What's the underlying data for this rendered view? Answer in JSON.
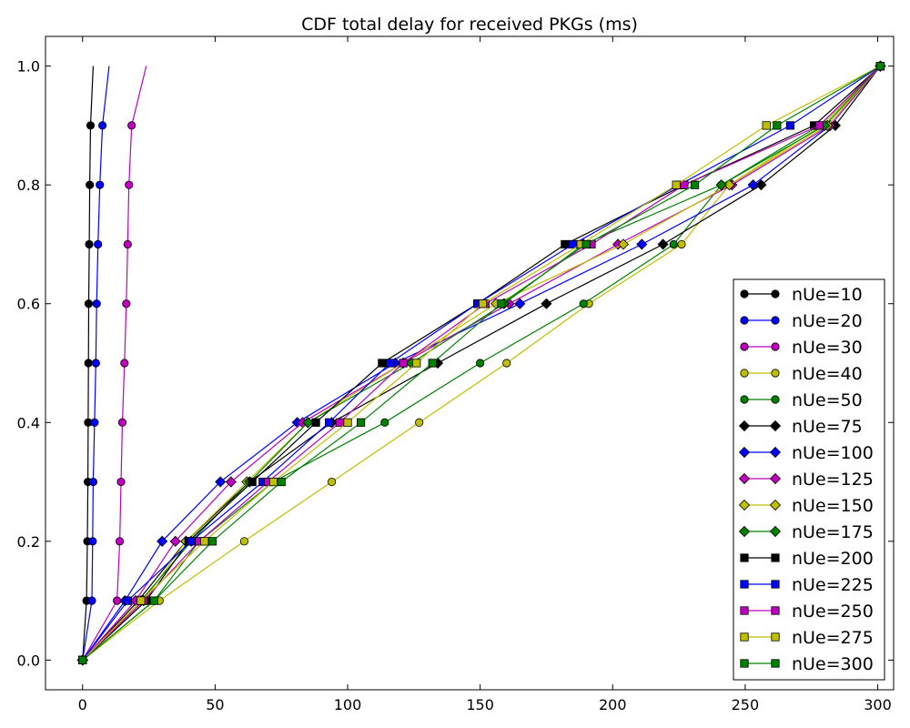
{
  "chart_data": {
    "type": "line",
    "title": "CDF total delay for received PKGs (ms)",
    "xlabel": "",
    "ylabel": "",
    "xlim": [
      -14,
      306
    ],
    "ylim": [
      -0.05,
      1.05
    ],
    "xticks": [
      0,
      50,
      100,
      150,
      200,
      250,
      300
    ],
    "yticks": [
      0.0,
      0.2,
      0.4,
      0.6,
      0.8,
      1.0
    ],
    "xtick_labels": [
      "0",
      "50",
      "100",
      "150",
      "200",
      "250",
      "300"
    ],
    "ytick_labels": [
      "0.0",
      "0.2",
      "0.4",
      "0.6",
      "0.8",
      "1.0"
    ],
    "grid": false,
    "legend_position": "lower-right",
    "series": [
      {
        "name": "nUe=10",
        "color": "#000000",
        "marker": "circle",
        "marker_points": [
          [
            0,
            0
          ],
          [
            1.5,
            0.1
          ],
          [
            1.8,
            0.2
          ],
          [
            2,
            0.3
          ],
          [
            2.1,
            0.4
          ],
          [
            2.2,
            0.5
          ],
          [
            2.3,
            0.6
          ],
          [
            2.5,
            0.7
          ],
          [
            2.7,
            0.8
          ],
          [
            3,
            0.9
          ]
        ],
        "end_point": [
          4,
          1.0
        ]
      },
      {
        "name": "nUe=20",
        "color": "#0000ff",
        "marker": "circle",
        "marker_points": [
          [
            0,
            0
          ],
          [
            3.5,
            0.1
          ],
          [
            3.8,
            0.2
          ],
          [
            4,
            0.3
          ],
          [
            4.5,
            0.4
          ],
          [
            5,
            0.5
          ],
          [
            5.3,
            0.6
          ],
          [
            5.8,
            0.7
          ],
          [
            6.5,
            0.8
          ],
          [
            7.5,
            0.9
          ]
        ],
        "end_point": [
          10,
          1.0
        ]
      },
      {
        "name": "nUe=30",
        "color": "#bf00bf",
        "marker": "circle",
        "marker_points": [
          [
            0,
            0
          ],
          [
            13,
            0.1
          ],
          [
            14,
            0.2
          ],
          [
            14.5,
            0.3
          ],
          [
            15,
            0.4
          ],
          [
            15.8,
            0.5
          ],
          [
            16.5,
            0.6
          ],
          [
            17,
            0.7
          ],
          [
            17.5,
            0.8
          ],
          [
            18.5,
            0.9
          ]
        ],
        "end_point": [
          24,
          1.0
        ]
      },
      {
        "name": "nUe=40",
        "color": "#bfbf00",
        "marker": "circle",
        "marker_points": [
          [
            0,
            0
          ],
          [
            29,
            0.1
          ],
          [
            61,
            0.2
          ],
          [
            94,
            0.3
          ],
          [
            127,
            0.4
          ],
          [
            160,
            0.5
          ],
          [
            191,
            0.6
          ],
          [
            226,
            0.7
          ],
          [
            244,
            0.8
          ],
          [
            279,
            0.9
          ],
          [
            301,
            1.0
          ]
        ]
      },
      {
        "name": "nUe=50",
        "color": "#008000",
        "marker": "circle",
        "marker_points": [
          [
            0,
            0
          ],
          [
            27,
            0.1
          ],
          [
            44,
            0.2
          ],
          [
            72,
            0.3
          ],
          [
            114,
            0.4
          ],
          [
            150,
            0.5
          ],
          [
            189,
            0.6
          ],
          [
            223,
            0.7
          ],
          [
            241,
            0.8
          ],
          [
            278,
            0.9
          ],
          [
            301,
            1.0
          ]
        ]
      },
      {
        "name": "nUe=75",
        "color": "#000000",
        "marker": "diamond",
        "marker_points": [
          [
            0,
            0
          ],
          [
            21,
            0.1
          ],
          [
            39,
            0.2
          ],
          [
            63,
            0.3
          ],
          [
            94,
            0.4
          ],
          [
            134,
            0.5
          ],
          [
            175,
            0.6
          ],
          [
            219,
            0.7
          ],
          [
            256,
            0.8
          ],
          [
            284,
            0.9
          ],
          [
            301,
            1.0
          ]
        ]
      },
      {
        "name": "nUe=100",
        "color": "#0000ff",
        "marker": "diamond",
        "marker_points": [
          [
            0,
            0
          ],
          [
            16,
            0.1
          ],
          [
            30,
            0.2
          ],
          [
            52,
            0.3
          ],
          [
            81,
            0.4
          ],
          [
            118,
            0.5
          ],
          [
            165,
            0.6
          ],
          [
            211,
            0.7
          ],
          [
            253,
            0.8
          ],
          [
            282,
            0.9
          ],
          [
            301,
            1.0
          ]
        ]
      },
      {
        "name": "nUe=125",
        "color": "#bf00bf",
        "marker": "diamond",
        "marker_points": [
          [
            0,
            0
          ],
          [
            20,
            0.1
          ],
          [
            35,
            0.2
          ],
          [
            56,
            0.3
          ],
          [
            83,
            0.4
          ],
          [
            121,
            0.5
          ],
          [
            161,
            0.6
          ],
          [
            202,
            0.7
          ],
          [
            245,
            0.8
          ],
          [
            282,
            0.9
          ],
          [
            301,
            1.0
          ]
        ]
      },
      {
        "name": "nUe=150",
        "color": "#bfbf00",
        "marker": "diamond",
        "marker_points": [
          [
            0,
            0
          ],
          [
            23,
            0.1
          ],
          [
            39,
            0.2
          ],
          [
            62,
            0.3
          ],
          [
            85,
            0.4
          ],
          [
            121,
            0.5
          ],
          [
            156,
            0.6
          ],
          [
            204,
            0.7
          ],
          [
            244,
            0.8
          ],
          [
            281,
            0.9
          ],
          [
            301,
            1.0
          ]
        ]
      },
      {
        "name": "nUe=175",
        "color": "#008000",
        "marker": "diamond",
        "marker_points": [
          [
            0,
            0
          ],
          [
            22,
            0.1
          ],
          [
            41,
            0.2
          ],
          [
            63,
            0.3
          ],
          [
            85,
            0.4
          ],
          [
            124,
            0.5
          ],
          [
            159,
            0.6
          ],
          [
            189,
            0.7
          ],
          [
            241,
            0.8
          ],
          [
            280,
            0.9
          ],
          [
            301,
            1.0
          ]
        ]
      },
      {
        "name": "nUe=200",
        "color": "#000000",
        "marker": "square",
        "marker_points": [
          [
            0,
            0
          ],
          [
            24,
            0.1
          ],
          [
            40,
            0.2
          ],
          [
            64,
            0.3
          ],
          [
            88,
            0.4
          ],
          [
            113,
            0.5
          ],
          [
            149,
            0.6
          ],
          [
            182,
            0.7
          ],
          [
            227,
            0.8
          ],
          [
            276,
            0.9
          ],
          [
            301,
            1.0
          ]
        ]
      },
      {
        "name": "nUe=225",
        "color": "#0000ff",
        "marker": "square",
        "marker_points": [
          [
            0,
            0
          ],
          [
            17,
            0.1
          ],
          [
            41,
            0.2
          ],
          [
            68,
            0.3
          ],
          [
            93,
            0.4
          ],
          [
            116,
            0.5
          ],
          [
            149,
            0.6
          ],
          [
            185,
            0.7
          ],
          [
            225,
            0.8
          ],
          [
            267,
            0.9
          ],
          [
            301,
            1.0
          ]
        ]
      },
      {
        "name": "nUe=250",
        "color": "#bf00bf",
        "marker": "square",
        "marker_points": [
          [
            0,
            0
          ],
          [
            23,
            0.1
          ],
          [
            44,
            0.2
          ],
          [
            70,
            0.3
          ],
          [
            97,
            0.4
          ],
          [
            121,
            0.5
          ],
          [
            152,
            0.6
          ],
          [
            192,
            0.7
          ],
          [
            227,
            0.8
          ],
          [
            278,
            0.9
          ],
          [
            301,
            1.0
          ]
        ]
      },
      {
        "name": "nUe=275",
        "color": "#bfbf00",
        "marker": "square",
        "marker_points": [
          [
            0,
            0
          ],
          [
            22,
            0.1
          ],
          [
            46,
            0.2
          ],
          [
            72,
            0.3
          ],
          [
            100,
            0.4
          ],
          [
            126,
            0.5
          ],
          [
            151,
            0.6
          ],
          [
            188,
            0.7
          ],
          [
            224,
            0.8
          ],
          [
            258,
            0.9
          ],
          [
            301,
            1.0
          ]
        ]
      },
      {
        "name": "nUe=300",
        "color": "#008000",
        "marker": "square",
        "marker_points": [
          [
            0,
            0
          ],
          [
            27,
            0.1
          ],
          [
            49,
            0.2
          ],
          [
            75,
            0.3
          ],
          [
            105,
            0.4
          ],
          [
            132,
            0.5
          ],
          [
            158,
            0.6
          ],
          [
            190,
            0.7
          ],
          [
            231,
            0.8
          ],
          [
            262,
            0.9
          ],
          [
            301,
            1.0
          ]
        ]
      }
    ]
  }
}
